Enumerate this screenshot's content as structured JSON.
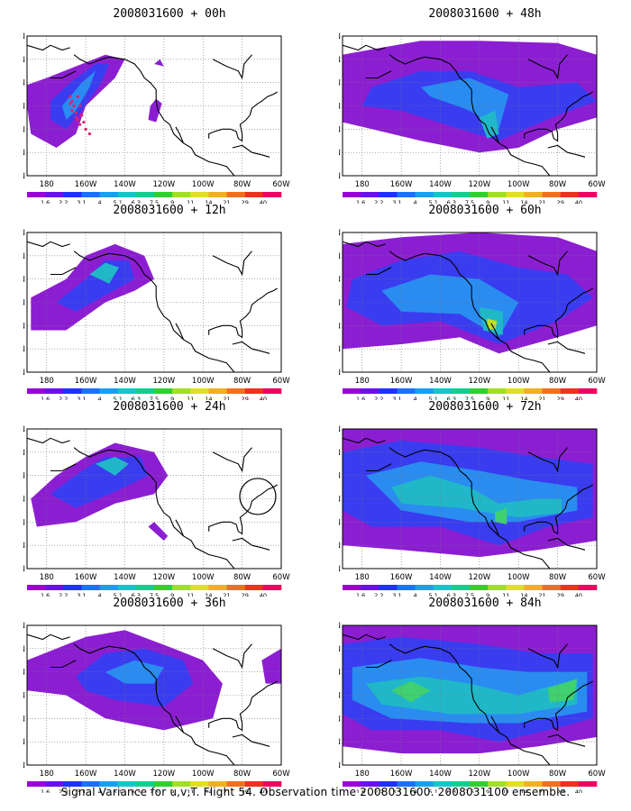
{
  "panels": [
    {
      "title": "2008031600 + 00h",
      "variant": 0,
      "circle": false,
      "flight_track": true
    },
    {
      "title": "2008031600 + 48h",
      "variant": 4,
      "circle": false,
      "flight_track": false
    },
    {
      "title": "2008031600 + 12h",
      "variant": 1,
      "circle": false,
      "flight_track": false
    },
    {
      "title": "2008031600 + 60h",
      "variant": 5,
      "circle": false,
      "flight_track": false
    },
    {
      "title": "2008031600 + 24h",
      "variant": 2,
      "circle": true,
      "flight_track": false
    },
    {
      "title": "2008031600 + 72h",
      "variant": 6,
      "circle": false,
      "flight_track": false
    },
    {
      "title": "2008031600 + 36h",
      "variant": 3,
      "circle": false,
      "flight_track": false
    },
    {
      "title": "2008031600 + 84h",
      "variant": 7,
      "circle": false,
      "flight_track": false
    }
  ],
  "axes": {
    "lat_labels": [
      "70N",
      "60N",
      "50N",
      "40N",
      "30N",
      "20N",
      "10N"
    ],
    "lon_labels": [
      "180",
      "160W",
      "140W",
      "120W",
      "100W",
      "80W",
      "60W"
    ]
  },
  "colorbar": {
    "labels": [
      "1.6",
      "2.2",
      "3.1",
      "4",
      "5.1",
      "6.3",
      "7.5",
      "9",
      "11",
      "14",
      "21",
      "29",
      "40"
    ],
    "colors": [
      "#9a00d8",
      "#6a10f0",
      "#2030ff",
      "#1c70ff",
      "#18a0f0",
      "#10c8c8",
      "#10d090",
      "#30d030",
      "#a0e020",
      "#e0e020",
      "#f0b020",
      "#f07020",
      "#f03020",
      "#f00060"
    ]
  },
  "footer": "Signal Variance for u,v,T. Flight 54. Observation time 2008031600. 2008031100 ensemble."
}
